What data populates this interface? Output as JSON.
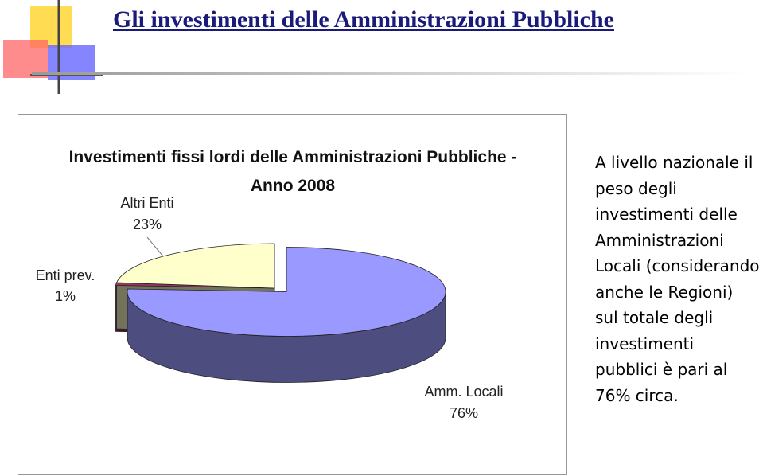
{
  "slide_title": "Gli investimenti delle Amministrazioni Pubbliche",
  "chart_data": {
    "type": "pie",
    "title": "Investimenti fissi lordi delle Amministrazioni Pubbliche - Anno 2008",
    "categories": [
      "Amm. Locali",
      "Enti prev.",
      "Altri Enti"
    ],
    "values": [
      76,
      1,
      23
    ],
    "value_labels": [
      "76%",
      "1%",
      "23%"
    ],
    "colors": [
      "#9999ff",
      "#993366",
      "#ffffcc"
    ]
  },
  "side_text": "A livello nazionale il peso degli investimenti delle Amministrazioni Locali (considerando anche le Regioni) sul totale degli investimenti pubblici è pari al 76% circa."
}
